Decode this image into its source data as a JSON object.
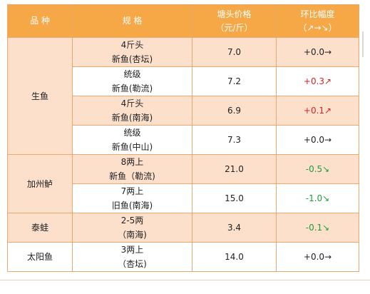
{
  "header": {
    "variety": "品 种",
    "spec": "规 格",
    "price_line1": "塘头价格",
    "price_line2": "（元/斤）",
    "change_line1": "环比幅度",
    "change_line2": "（↗→↘）"
  },
  "rows": [
    {
      "category": "生鱼",
      "spec1": "4斤头",
      "spec2": "新鱼(杏坛)",
      "price": "7.0",
      "change": "+0.0→",
      "trend": "flat"
    },
    {
      "category": "",
      "spec1": "统级",
      "spec2": "新鱼(勒流)",
      "price": "7.2",
      "change": "+0.3↗",
      "trend": "up"
    },
    {
      "category": "",
      "spec1": "4斤头",
      "spec2": "新鱼(南海)",
      "price": "6.9",
      "change": "+0.1↗",
      "trend": "up"
    },
    {
      "category": "",
      "spec1": "统级",
      "spec2": "新鱼(中山)",
      "price": "7.3",
      "change": "+0.0→",
      "trend": "flat"
    },
    {
      "category": "加州鲈",
      "spec1": "8两上",
      "spec2": "新鱼（勒流)",
      "price": "21.0",
      "change": "-0.5↘",
      "trend": "down"
    },
    {
      "category": "",
      "spec1": "7两上",
      "spec2": "旧鱼(南海)",
      "price": "15.0",
      "change": "-1.0↘",
      "trend": "down"
    },
    {
      "category": "泰蛙",
      "spec1": "2-5两",
      "spec2": "（南海)",
      "price": "3.4",
      "change": "-0.1↘",
      "trend": "down"
    },
    {
      "category": "太阳鱼",
      "spec1": "3两上",
      "spec2": "（杏坛)",
      "price": "14.0",
      "change": "+0.0→",
      "trend": "flat"
    }
  ],
  "colors": {
    "header_bg": "#f5a845",
    "band_bg": "#fce0cc",
    "border": "#e8a86e",
    "up": "#d22626",
    "down": "#1f9d3a"
  }
}
